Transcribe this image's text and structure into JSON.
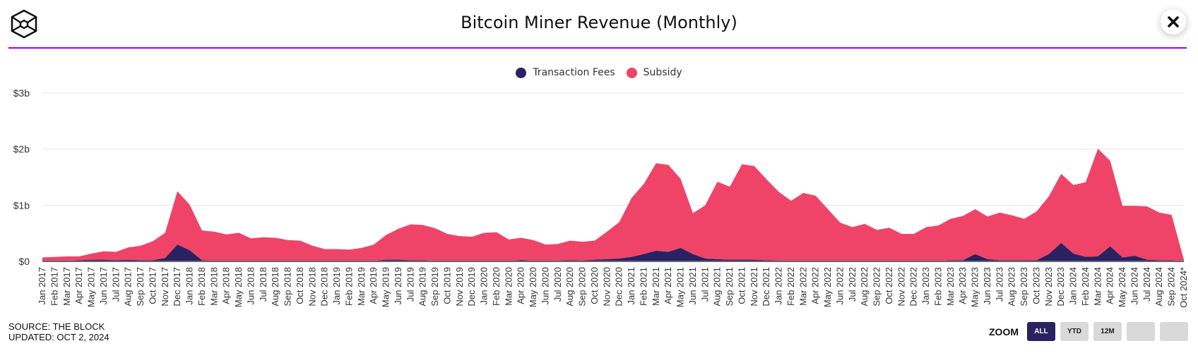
{
  "header": {
    "title": "Bitcoin Miner Revenue (Monthly)",
    "logo_icon": "cube-logo-icon",
    "close_icon": "close-icon"
  },
  "legend": [
    {
      "label": "Transaction Fees",
      "color": "#2a2160"
    },
    {
      "label": "Subsidy",
      "color": "#ef4468"
    }
  ],
  "footer": {
    "source": "SOURCE: THE BLOCK",
    "updated": "UPDATED: OCT 2, 2024"
  },
  "zoom": {
    "label": "ZOOM",
    "buttons": [
      {
        "label": "ALL",
        "active": true
      },
      {
        "label": "YTD",
        "active": false
      },
      {
        "label": "12M",
        "active": false
      },
      {
        "label": "",
        "active": false
      },
      {
        "label": "",
        "active": false
      }
    ]
  },
  "chart_data": {
    "type": "area",
    "stacked": true,
    "title": "Bitcoin Miner Revenue (Monthly)",
    "xlabel": "",
    "ylabel": "",
    "ylim": [
      0,
      3
    ],
    "y_unit": "$b",
    "yticks": [
      {
        "value": 0,
        "label": "$0"
      },
      {
        "value": 1,
        "label": "$1b"
      },
      {
        "value": 2,
        "label": "$2b"
      },
      {
        "value": 3,
        "label": "$3b"
      }
    ],
    "grid": true,
    "legend_position": "top-center",
    "categories": [
      "Jan 2017",
      "Feb 2017",
      "Mar 2017",
      "Apr 2017",
      "May 2017",
      "Jun 2017",
      "Jul 2017",
      "Aug 2017",
      "Sep 2017",
      "Oct 2017",
      "Nov 2017",
      "Dec 2017",
      "Jan 2018",
      "Feb 2018",
      "Mar 2018",
      "Apr 2018",
      "May 2018",
      "Jun 2018",
      "Jul 2018",
      "Aug 2018",
      "Sep 2018",
      "Oct 2018",
      "Nov 2018",
      "Dec 2018",
      "Jan 2019",
      "Feb 2019",
      "Mar 2019",
      "Apr 2019",
      "May 2019",
      "Jun 2019",
      "Jul 2019",
      "Aug 2019",
      "Sep 2019",
      "Oct 2019",
      "Nov 2019",
      "Dec 2019",
      "Jan 2020",
      "Feb 2020",
      "Mar 2020",
      "Apr 2020",
      "May 2020",
      "Jun 2020",
      "Jul 2020",
      "Aug 2020",
      "Sep 2020",
      "Oct 2020",
      "Nov 2020",
      "Dec 2020",
      "Jan 2021",
      "Feb 2021",
      "Mar 2021",
      "Apr 2021",
      "May 2021",
      "Jun 2021",
      "Jul 2021",
      "Aug 2021",
      "Sep 2021",
      "Oct 2021",
      "Nov 2021",
      "Dec 2021",
      "Jan 2022",
      "Feb 2022",
      "Mar 2022",
      "Apr 2022",
      "May 2022",
      "Jun 2022",
      "Jul 2022",
      "Aug 2022",
      "Sep 2022",
      "Oct 2022",
      "Nov 2022",
      "Dec 2022",
      "Jan 2023",
      "Feb 2023",
      "Mar 2023",
      "Apr 2023",
      "May 2023",
      "Jun 2023",
      "Jul 2023",
      "Aug 2023",
      "Sep 2023",
      "Oct 2023",
      "Nov 2023",
      "Dec 2023",
      "Jan 2024",
      "Feb 2024",
      "Mar 2024",
      "Apr 2024",
      "May 2024",
      "Jun 2024",
      "Jul 2024",
      "Aug 2024",
      "Sep 2024",
      "Oct 2024*"
    ],
    "series": [
      {
        "name": "Transaction Fees",
        "color": "#2a2160",
        "values": [
          0.01,
          0.01,
          0.01,
          0.02,
          0.03,
          0.03,
          0.02,
          0.03,
          0.02,
          0.02,
          0.06,
          0.3,
          0.2,
          0.02,
          0.01,
          0.01,
          0.01,
          0.005,
          0.005,
          0.005,
          0.005,
          0.005,
          0.005,
          0.005,
          0.005,
          0.005,
          0.005,
          0.01,
          0.03,
          0.03,
          0.02,
          0.02,
          0.01,
          0.01,
          0.005,
          0.005,
          0.005,
          0.01,
          0.005,
          0.025,
          0.01,
          0.01,
          0.015,
          0.02,
          0.015,
          0.03,
          0.04,
          0.05,
          0.08,
          0.13,
          0.19,
          0.17,
          0.24,
          0.13,
          0.05,
          0.04,
          0.03,
          0.03,
          0.03,
          0.02,
          0.015,
          0.01,
          0.01,
          0.01,
          0.01,
          0.01,
          0.01,
          0.01,
          0.005,
          0.005,
          0.005,
          0.005,
          0.01,
          0.01,
          0.02,
          0.02,
          0.13,
          0.04,
          0.02,
          0.02,
          0.02,
          0.02,
          0.13,
          0.33,
          0.14,
          0.08,
          0.09,
          0.27,
          0.07,
          0.1,
          0.03,
          0.02,
          0.02,
          0.005
        ]
      },
      {
        "name": "Subsidy",
        "color": "#ef4468",
        "values": [
          0.06,
          0.07,
          0.08,
          0.07,
          0.11,
          0.15,
          0.15,
          0.22,
          0.26,
          0.34,
          0.45,
          0.95,
          0.81,
          0.53,
          0.52,
          0.47,
          0.5,
          0.405,
          0.425,
          0.415,
          0.375,
          0.365,
          0.275,
          0.215,
          0.215,
          0.205,
          0.235,
          0.29,
          0.44,
          0.55,
          0.64,
          0.63,
          0.58,
          0.48,
          0.445,
          0.435,
          0.505,
          0.51,
          0.385,
          0.395,
          0.37,
          0.29,
          0.295,
          0.35,
          0.335,
          0.34,
          0.49,
          0.65,
          1.05,
          1.25,
          1.56,
          1.55,
          1.23,
          0.73,
          0.95,
          1.38,
          1.3,
          1.7,
          1.67,
          1.44,
          1.225,
          1.07,
          1.21,
          1.16,
          0.92,
          0.68,
          0.6,
          0.66,
          0.555,
          0.595,
          0.485,
          0.485,
          0.6,
          0.63,
          0.74,
          0.79,
          0.8,
          0.76,
          0.85,
          0.8,
          0.74,
          0.87,
          1.03,
          1.23,
          1.22,
          1.33,
          1.92,
          1.52,
          0.92,
          0.89,
          0.95,
          0.85,
          0.81,
          0.025
        ]
      }
    ]
  }
}
